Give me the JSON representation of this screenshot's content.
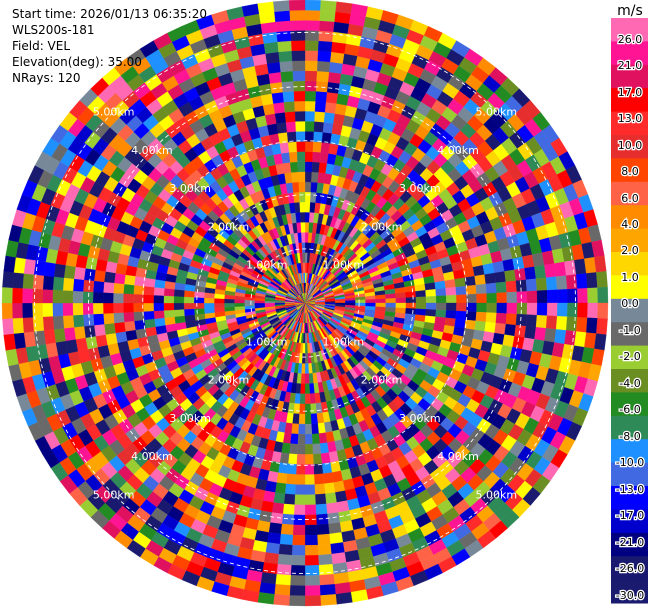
{
  "header": {
    "start_time": "Start time: 2026/01/13 06:35:20",
    "instrument": "WLS200s-181",
    "field": "Field: VEL",
    "elevation": "Elevation(deg): 35.00",
    "nrays": "NRays: 120"
  },
  "chart_data": {
    "type": "heatmap",
    "projection": "polar",
    "field": "VEL",
    "unit_label": "m/s",
    "n_rays": 120,
    "n_gates": 30,
    "range_rings_km": [
      1.0,
      2.0,
      3.0,
      4.0,
      5.0
    ],
    "ring_labels": [
      "1.00km",
      "2.00km",
      "3.00km",
      "4.00km",
      "5.00km"
    ],
    "max_range_km": 5.6,
    "colorbar": {
      "ticks": [
        "26.0",
        "21.0",
        "17.0",
        "13.0",
        "10.0",
        "8.0",
        "6.0",
        "4.0",
        "2.0",
        "1.0",
        "0.0",
        "-1.0",
        "-2.0",
        "-4.0",
        "-6.0",
        "-8.0",
        "-10.0",
        "-13.0",
        "-17.0",
        "-21.0",
        "-26.0",
        "-30.0"
      ],
      "colors": [
        "#ff69b4",
        "#ff1493",
        "#e0115f",
        "#ff0000",
        "#ff2b2b",
        "#e62e2e",
        "#ff4500",
        "#ff6347",
        "#ff8c00",
        "#ffa500",
        "#ffd700",
        "#ffff00",
        "#778899",
        "#696969",
        "#9acd32",
        "#6b8e23",
        "#228b22",
        "#2e8b57",
        "#1e90ff",
        "#4169e1",
        "#0000ff",
        "#0000cd",
        "#000080",
        "#191970",
        "#1a1a6e"
      ]
    }
  }
}
